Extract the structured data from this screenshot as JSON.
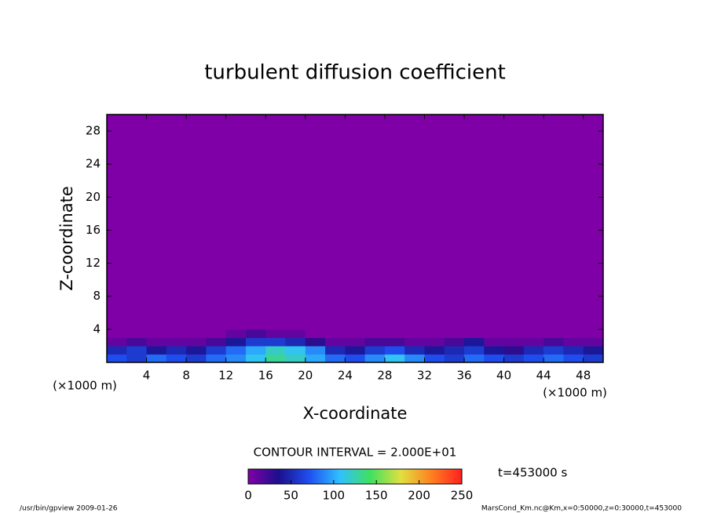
{
  "chart_data": {
    "type": "heatmap",
    "title": "turbulent diffusion coefficient",
    "x_label": "X-coordinate",
    "y_label": "Z-coordinate",
    "x_unit": "(×1000 m)",
    "y_unit": "(×1000 m)",
    "xbins": [
      0,
      2,
      4,
      6,
      8,
      10,
      12,
      14,
      16,
      18,
      20,
      22,
      24,
      26,
      28,
      30,
      32,
      34,
      36,
      38,
      40,
      42,
      44,
      46,
      48,
      50
    ],
    "ybins": [
      0,
      1,
      2,
      3,
      4,
      30
    ],
    "values": [
      [
        70,
        60,
        80,
        70,
        60,
        80,
        90,
        110,
        130,
        120,
        100,
        80,
        70,
        90,
        110,
        90,
        70,
        60,
        80,
        70,
        60,
        70,
        80,
        70,
        60
      ],
      [
        50,
        60,
        40,
        50,
        40,
        60,
        80,
        100,
        120,
        110,
        90,
        50,
        40,
        60,
        70,
        50,
        40,
        50,
        60,
        40,
        30,
        50,
        60,
        50,
        40
      ],
      [
        10,
        20,
        10,
        10,
        10,
        20,
        40,
        60,
        60,
        50,
        30,
        10,
        10,
        20,
        20,
        10,
        10,
        20,
        40,
        10,
        10,
        10,
        20,
        10,
        10
      ],
      [
        0,
        0,
        0,
        0,
        0,
        0,
        10,
        20,
        10,
        10,
        0,
        0,
        0,
        0,
        0,
        0,
        0,
        0,
        0,
        0,
        0,
        0,
        0,
        0,
        0
      ],
      [
        0,
        0,
        0,
        0,
        0,
        0,
        0,
        0,
        0,
        0,
        0,
        0,
        0,
        0,
        0,
        0,
        0,
        0,
        0,
        0,
        0,
        0,
        0,
        0,
        0
      ]
    ],
    "xlim": [
      0,
      50
    ],
    "ylim": [
      0,
      30
    ],
    "xticks": [
      4,
      8,
      12,
      16,
      20,
      24,
      28,
      32,
      36,
      40,
      44,
      48
    ],
    "yticks": [
      4,
      8,
      12,
      16,
      20,
      24,
      28
    ],
    "clim": [
      0,
      250
    ],
    "colorbar_ticks": [
      0,
      50,
      100,
      150,
      200,
      250
    ],
    "colorscale": [
      "#8000a8",
      "#1c0f8c",
      "#1f4ff0",
      "#30c0ff",
      "#40e060",
      "#e0e040",
      "#ff8020",
      "#ff2020"
    ],
    "contour_interval": "CONTOUR INTERVAL = 2.000E+01",
    "time_label": "t=453000 s",
    "footer_left": "/usr/bin/gpview   2009-01-26",
    "footer_right": "MarsCond_Km.nc@Km,x=0:50000,z=0:30000,t=453000"
  }
}
